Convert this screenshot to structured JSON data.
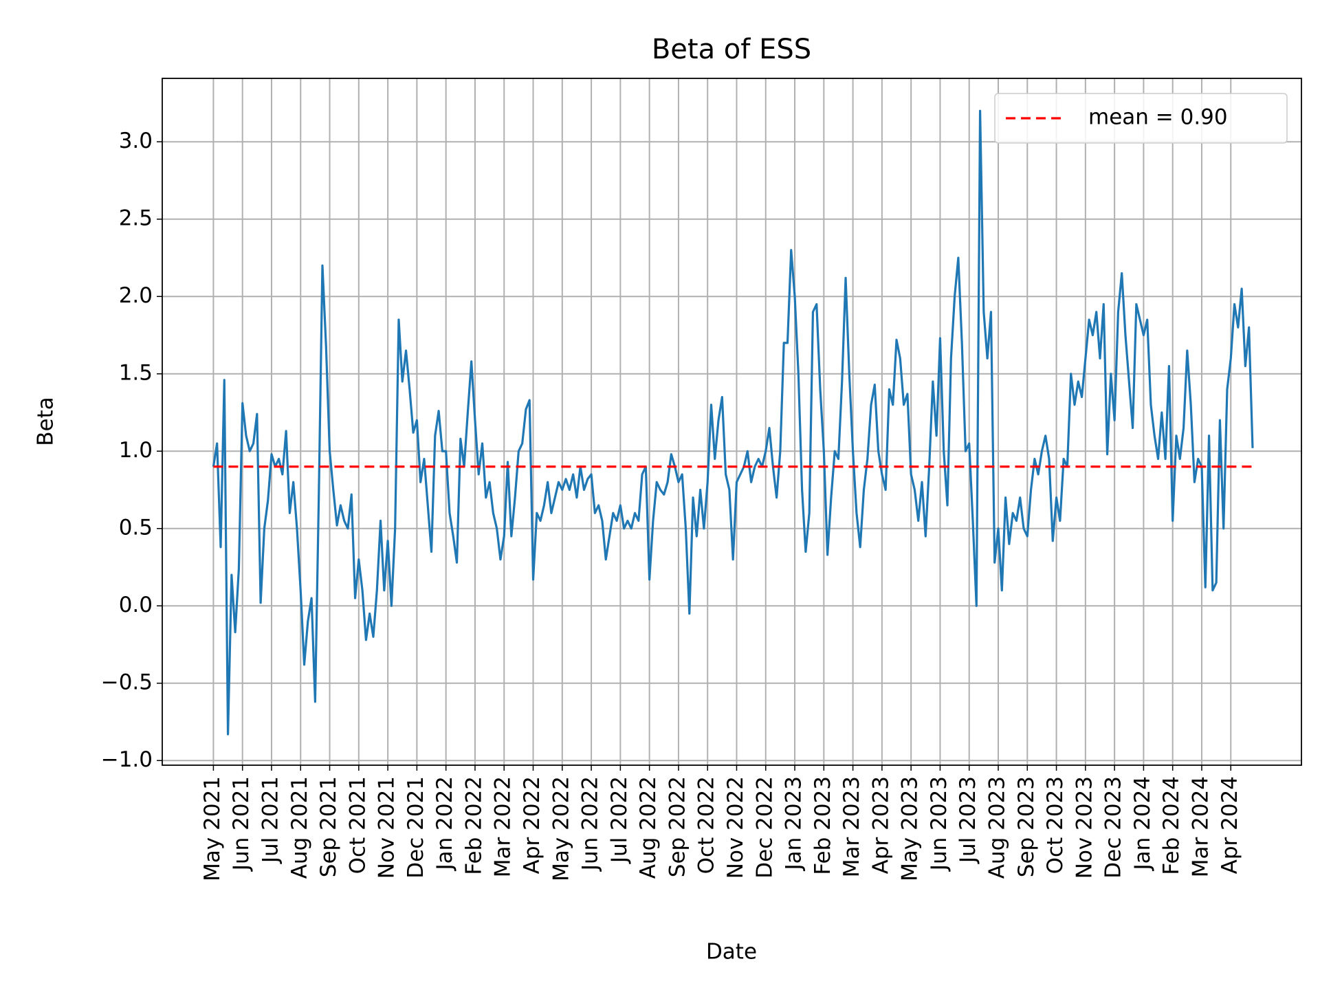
{
  "chart_data": {
    "type": "line",
    "title": "Beta of ESS",
    "x_label": "Date",
    "y_label": "Beta",
    "grid": true,
    "legend": "upper right",
    "xlim": [
      -1.76,
      37.43
    ],
    "ylim": [
      -1.03,
      3.41
    ],
    "xticks": [
      {
        "value": 0,
        "label": "May 2021"
      },
      {
        "value": 1,
        "label": "Jun 2021"
      },
      {
        "value": 2,
        "label": "Jul 2021"
      },
      {
        "value": 3,
        "label": "Aug 2021"
      },
      {
        "value": 4,
        "label": "Sep 2021"
      },
      {
        "value": 5,
        "label": "Oct 2021"
      },
      {
        "value": 6,
        "label": "Nov 2021"
      },
      {
        "value": 7,
        "label": "Dec 2021"
      },
      {
        "value": 8,
        "label": "Jan 2022"
      },
      {
        "value": 9,
        "label": "Feb 2022"
      },
      {
        "value": 10,
        "label": "Mar 2022"
      },
      {
        "value": 11,
        "label": "Apr 2022"
      },
      {
        "value": 12,
        "label": "May 2022"
      },
      {
        "value": 13,
        "label": "Jun 2022"
      },
      {
        "value": 14,
        "label": "Jul 2022"
      },
      {
        "value": 15,
        "label": "Aug 2022"
      },
      {
        "value": 16,
        "label": "Sep 2022"
      },
      {
        "value": 17,
        "label": "Oct 2022"
      },
      {
        "value": 18,
        "label": "Nov 2022"
      },
      {
        "value": 19,
        "label": "Dec 2022"
      },
      {
        "value": 20,
        "label": "Jan 2023"
      },
      {
        "value": 21,
        "label": "Feb 2023"
      },
      {
        "value": 22,
        "label": "Mar 2023"
      },
      {
        "value": 23,
        "label": "Apr 2023"
      },
      {
        "value": 24,
        "label": "May 2023"
      },
      {
        "value": 25,
        "label": "Jun 2023"
      },
      {
        "value": 26,
        "label": "Jul 2023"
      },
      {
        "value": 27,
        "label": "Aug 2023"
      },
      {
        "value": 28,
        "label": "Sep 2023"
      },
      {
        "value": 29,
        "label": "Oct 2023"
      },
      {
        "value": 30,
        "label": "Nov 2023"
      },
      {
        "value": 31,
        "label": "Dec 2023"
      },
      {
        "value": 32,
        "label": "Jan 2024"
      },
      {
        "value": 33,
        "label": "Feb 2024"
      },
      {
        "value": 34,
        "label": "Mar 2024"
      },
      {
        "value": 35,
        "label": "Apr 2024"
      }
    ],
    "yticks": [
      {
        "value": -1,
        "label": "−1.0"
      },
      {
        "value": -0.5,
        "label": "−0.5"
      },
      {
        "value": 0,
        "label": "0.0"
      },
      {
        "value": 0.5,
        "label": "0.5"
      },
      {
        "value": 1,
        "label": "1.0"
      },
      {
        "value": 1.5,
        "label": "1.5"
      },
      {
        "value": 2,
        "label": "2.0"
      },
      {
        "value": 2.5,
        "label": "2.5"
      },
      {
        "value": 3,
        "label": "3.0"
      }
    ],
    "x": [
      0,
      0.125,
      0.25,
      0.375,
      0.5,
      0.625,
      0.75,
      0.875,
      1,
      1.125,
      1.25,
      1.375,
      1.5,
      1.625,
      1.75,
      1.875,
      2,
      2.125,
      2.25,
      2.375,
      2.5,
      2.625,
      2.75,
      2.875,
      3,
      3.125,
      3.25,
      3.375,
      3.5,
      3.625,
      3.75,
      3.875,
      4,
      4.125,
      4.25,
      4.375,
      4.5,
      4.625,
      4.75,
      4.875,
      5,
      5.125,
      5.25,
      5.375,
      5.5,
      5.625,
      5.75,
      5.875,
      6,
      6.125,
      6.25,
      6.375,
      6.5,
      6.625,
      6.75,
      6.875,
      7,
      7.125,
      7.25,
      7.375,
      7.5,
      7.625,
      7.75,
      7.875,
      8,
      8.125,
      8.25,
      8.375,
      8.5,
      8.625,
      8.75,
      8.875,
      9,
      9.125,
      9.25,
      9.375,
      9.5,
      9.625,
      9.75,
      9.875,
      10,
      10.125,
      10.25,
      10.375,
      10.5,
      10.625,
      10.75,
      10.875,
      11,
      11.125,
      11.25,
      11.375,
      11.5,
      11.625,
      11.75,
      11.875,
      12,
      12.125,
      12.25,
      12.375,
      12.5,
      12.625,
      12.75,
      12.875,
      13,
      13.125,
      13.25,
      13.375,
      13.5,
      13.625,
      13.75,
      13.875,
      14,
      14.125,
      14.25,
      14.375,
      14.5,
      14.625,
      14.75,
      14.875,
      15,
      15.125,
      15.25,
      15.375,
      15.5,
      15.625,
      15.75,
      15.875,
      16,
      16.125,
      16.25,
      16.375,
      16.5,
      16.625,
      16.75,
      16.875,
      17,
      17.125,
      17.25,
      17.375,
      17.5,
      17.625,
      17.75,
      17.875,
      18,
      18.125,
      18.25,
      18.375,
      18.5,
      18.625,
      18.75,
      18.875,
      19,
      19.125,
      19.25,
      19.375,
      19.5,
      19.625,
      19.75,
      19.875,
      20,
      20.125,
      20.25,
      20.375,
      20.5,
      20.625,
      20.75,
      20.875,
      21,
      21.125,
      21.25,
      21.375,
      21.5,
      21.625,
      21.75,
      21.875,
      22,
      22.125,
      22.25,
      22.375,
      22.5,
      22.625,
      22.75,
      22.875,
      23,
      23.125,
      23.25,
      23.375,
      23.5,
      23.625,
      23.75,
      23.875,
      24,
      24.125,
      24.25,
      24.375,
      24.5,
      24.625,
      24.75,
      24.875,
      25,
      25.125,
      25.25,
      25.375,
      25.5,
      25.625,
      25.75,
      25.875,
      26,
      26.125,
      26.25,
      26.375,
      26.5,
      26.625,
      26.75,
      26.875,
      27,
      27.125,
      27.25,
      27.375,
      27.5,
      27.625,
      27.75,
      27.875,
      28,
      28.125,
      28.25,
      28.375,
      28.5,
      28.625,
      28.75,
      28.875,
      29,
      29.125,
      29.25,
      29.375,
      29.5,
      29.625,
      29.75,
      29.875,
      30,
      30.125,
      30.25,
      30.375,
      30.5,
      30.625,
      30.75,
      30.875,
      31,
      31.125,
      31.25,
      31.375,
      31.5,
      31.625,
      31.75,
      31.875,
      32,
      32.125,
      32.25,
      32.375,
      32.5,
      32.625,
      32.75,
      32.875,
      33,
      33.125,
      33.25,
      33.375,
      33.5,
      33.625,
      33.75,
      33.875,
      34,
      34.125,
      34.25,
      34.375,
      34.5,
      34.625,
      34.75,
      34.875,
      35,
      35.125,
      35.25,
      35.375,
      35.5,
      35.625,
      35.75
    ],
    "series": [
      {
        "name": "Beta",
        "color": "#1f77b4",
        "values": [
          0.9,
          1.05,
          0.38,
          1.46,
          -0.83,
          0.2,
          -0.17,
          0.24,
          1.31,
          1.1,
          1.0,
          1.05,
          1.24,
          0.02,
          0.5,
          0.68,
          0.98,
          0.9,
          0.95,
          0.85,
          1.13,
          0.6,
          0.8,
          0.5,
          0.1,
          -0.38,
          -0.1,
          0.05,
          -0.62,
          0.7,
          2.2,
          1.68,
          1.0,
          0.75,
          0.52,
          0.65,
          0.55,
          0.5,
          0.72,
          0.05,
          0.3,
          0.1,
          -0.22,
          -0.05,
          -0.2,
          0.1,
          0.55,
          0.1,
          0.42,
          0.0,
          0.5,
          1.85,
          1.45,
          1.65,
          1.4,
          1.12,
          1.2,
          0.8,
          0.95,
          0.65,
          0.35,
          1.1,
          1.26,
          1.0,
          1.0,
          0.6,
          0.45,
          0.28,
          1.08,
          0.9,
          1.25,
          1.58,
          1.2,
          0.85,
          1.05,
          0.7,
          0.8,
          0.6,
          0.5,
          0.3,
          0.45,
          0.93,
          0.45,
          0.7,
          1.0,
          1.05,
          1.27,
          1.33,
          0.17,
          0.6,
          0.55,
          0.65,
          0.8,
          0.6,
          0.7,
          0.8,
          0.75,
          0.82,
          0.75,
          0.85,
          0.7,
          0.9,
          0.75,
          0.82,
          0.85,
          0.6,
          0.65,
          0.55,
          0.3,
          0.45,
          0.6,
          0.55,
          0.65,
          0.5,
          0.55,
          0.5,
          0.6,
          0.55,
          0.85,
          0.9,
          0.17,
          0.55,
          0.8,
          0.75,
          0.72,
          0.8,
          0.98,
          0.9,
          0.8,
          0.85,
          0.5,
          -0.05,
          0.7,
          0.45,
          0.75,
          0.5,
          0.8,
          1.3,
          0.95,
          1.2,
          1.35,
          0.85,
          0.75,
          0.3,
          0.8,
          0.85,
          0.9,
          1.0,
          0.8,
          0.9,
          0.95,
          0.9,
          1.0,
          1.15,
          0.9,
          0.7,
          1.0,
          1.7,
          1.7,
          2.3,
          2.0,
          1.5,
          0.75,
          0.35,
          0.6,
          1.9,
          1.95,
          1.4,
          1.0,
          0.33,
          0.7,
          1.0,
          0.95,
          1.45,
          2.12,
          1.5,
          1.0,
          0.6,
          0.38,
          0.75,
          0.95,
          1.3,
          1.43,
          1.0,
          0.85,
          0.75,
          1.4,
          1.3,
          1.72,
          1.6,
          1.3,
          1.37,
          0.85,
          0.75,
          0.55,
          0.8,
          0.45,
          0.9,
          1.45,
          1.1,
          1.73,
          1.0,
          0.65,
          1.6,
          2.0,
          2.25,
          1.7,
          1.0,
          1.05,
          0.55,
          0.0,
          3.2,
          1.9,
          1.6,
          1.9,
          0.28,
          0.5,
          0.1,
          0.7,
          0.4,
          0.6,
          0.55,
          0.7,
          0.5,
          0.45,
          0.75,
          0.95,
          0.85,
          1.0,
          1.1,
          0.95,
          0.42,
          0.7,
          0.55,
          0.95,
          0.9,
          1.5,
          1.3,
          1.45,
          1.35,
          1.6,
          1.85,
          1.75,
          1.9,
          1.6,
          1.95,
          0.98,
          1.5,
          1.2,
          1.9,
          2.15,
          1.75,
          1.45,
          1.15,
          1.95,
          1.85,
          1.75,
          1.85,
          1.3,
          1.1,
          0.95,
          1.25,
          0.95,
          1.55,
          0.55,
          1.1,
          0.95,
          1.15,
          1.65,
          1.3,
          0.8,
          0.95,
          0.9,
          0.12,
          1.1,
          0.1,
          0.15,
          1.2,
          0.5,
          1.4,
          1.6,
          1.95,
          1.8,
          2.05,
          1.55,
          1.8,
          1.02
        ]
      }
    ],
    "mean": {
      "name": "mean = 0.90",
      "value": 0.9,
      "color": "#ff0000"
    }
  }
}
